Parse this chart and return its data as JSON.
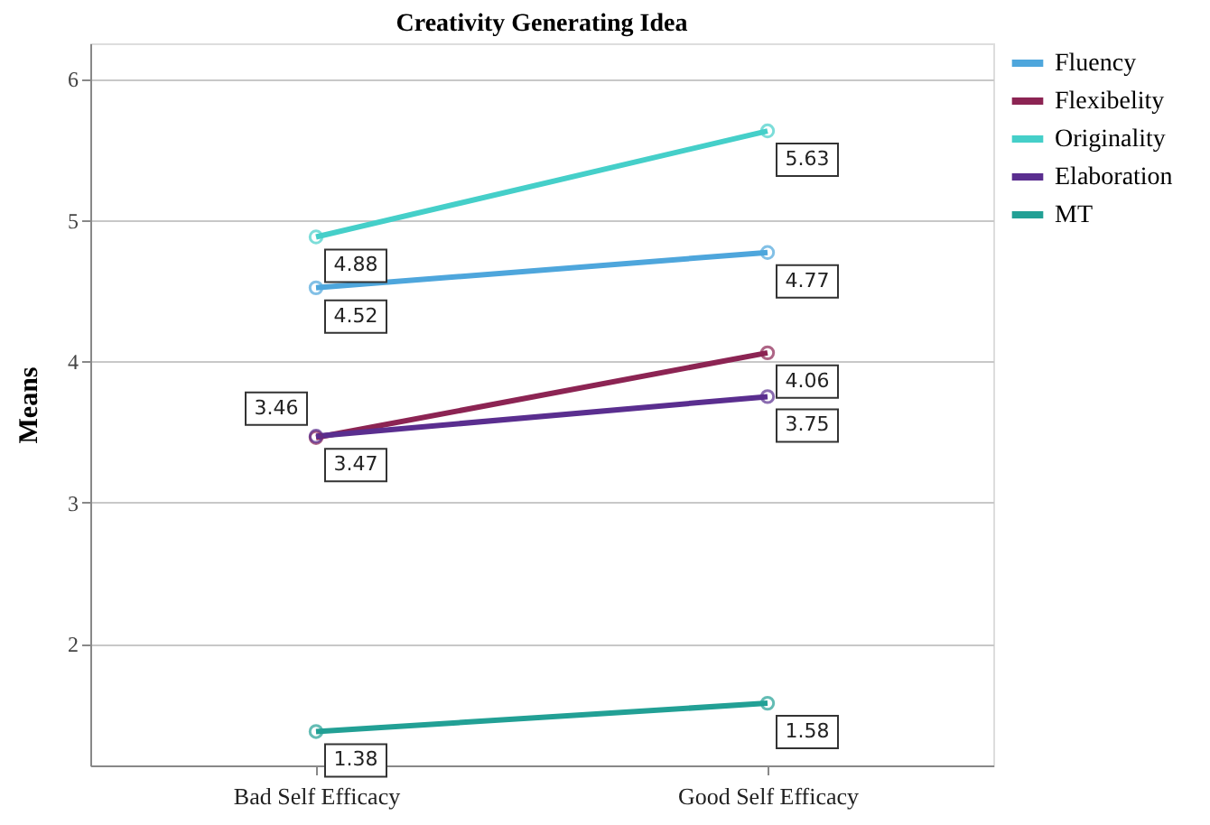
{
  "chart_data": {
    "type": "line",
    "title": "Creativity Generating Idea",
    "ylabel": "Means",
    "categories": [
      "Bad Self Efficacy",
      "Good Self Efficacy"
    ],
    "series": [
      {
        "name": "Fluency",
        "color": "#4ea6dc",
        "values": [
          4.52,
          4.77
        ]
      },
      {
        "name": "Flexibelity",
        "color": "#8c2453",
        "values": [
          3.46,
          4.06
        ]
      },
      {
        "name": "Originality",
        "color": "#45cfc9",
        "values": [
          4.88,
          5.63
        ]
      },
      {
        "name": "Elaboration",
        "color": "#5a2e8f",
        "values": [
          3.47,
          3.75
        ]
      },
      {
        "name": "MT",
        "color": "#22a095",
        "values": [
          1.38,
          1.58
        ]
      }
    ],
    "ylim": [
      1.14,
      6.25
    ],
    "yticks": [
      2,
      3,
      4,
      5,
      6
    ],
    "grid": "y",
    "legend": "top right",
    "marker": "circle",
    "line_style": "solid",
    "data_labels": true
  }
}
